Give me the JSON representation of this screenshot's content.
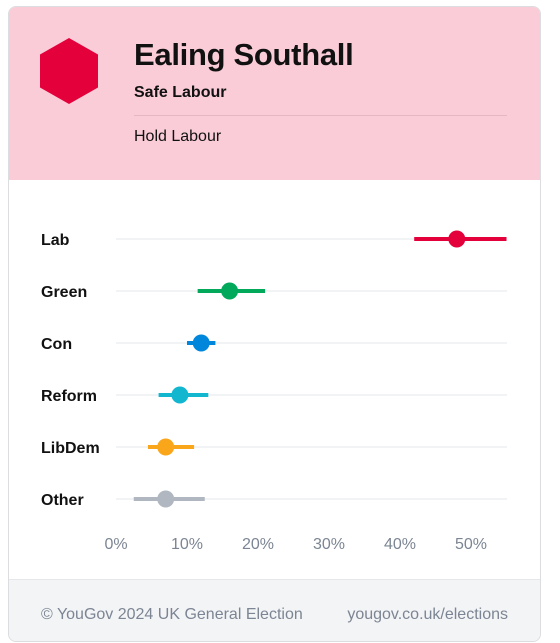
{
  "header": {
    "title": "Ealing Southall",
    "subtitle": "Safe Labour",
    "status": "Hold Labour",
    "badge_color": "#e4003b"
  },
  "chart_data": {
    "type": "scatter",
    "categories": [
      "Lab",
      "Green",
      "Con",
      "Reform",
      "LibDem",
      "Other"
    ],
    "values": [
      48,
      16,
      12,
      9,
      7,
      7
    ],
    "ranges": [
      [
        42,
        55
      ],
      [
        11.5,
        21
      ],
      [
        10,
        14
      ],
      [
        6,
        13
      ],
      [
        4.5,
        11
      ],
      [
        2.5,
        12.5
      ]
    ],
    "colors": [
      "#e4003b",
      "#02a95b",
      "#0087dc",
      "#12b6cf",
      "#faa61a",
      "#b0b7c1"
    ],
    "xlim": [
      0,
      55
    ],
    "xticks": [
      0,
      10,
      20,
      30,
      40,
      50
    ],
    "xtick_labels": [
      "0%",
      "10%",
      "20%",
      "30%",
      "40%",
      "50%"
    ],
    "grid": true
  },
  "footer": {
    "copyright": "© YouGov 2024 UK General Election",
    "link": "yougov.co.uk/elections"
  }
}
